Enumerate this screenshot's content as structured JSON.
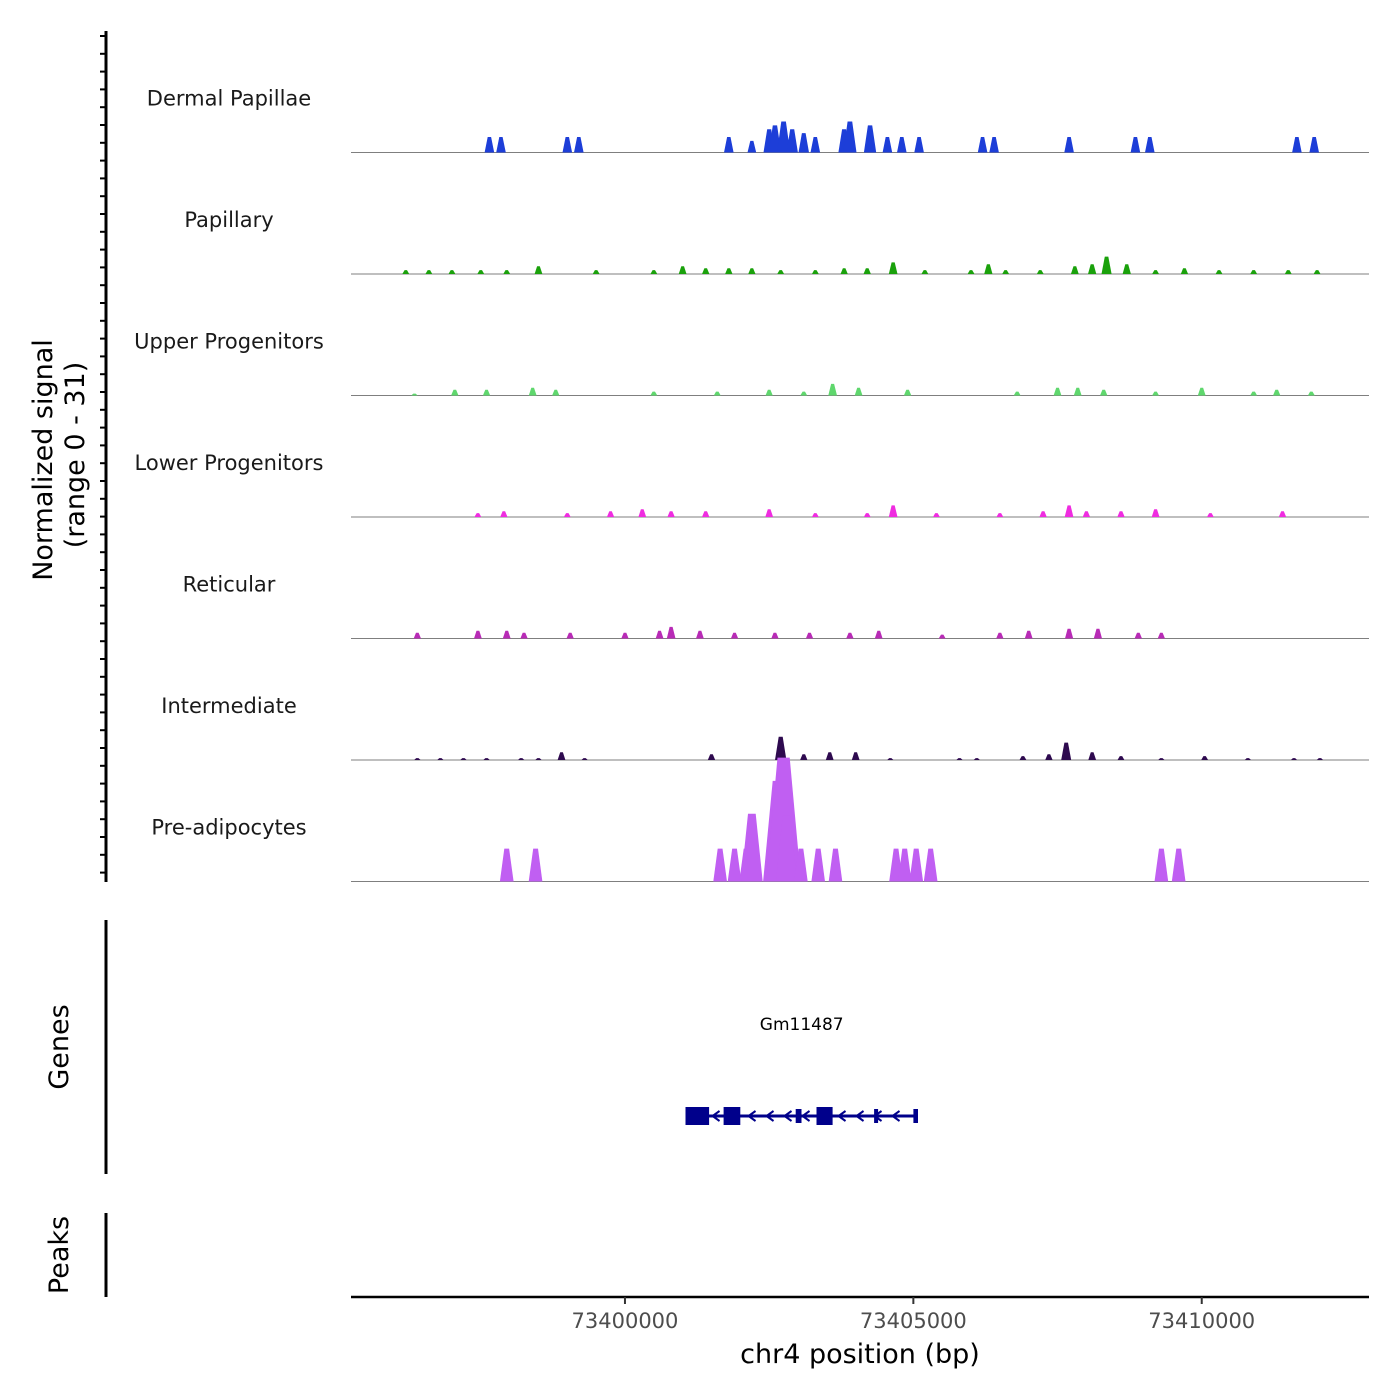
{
  "chart_data": {
    "type": "area",
    "title": "",
    "xlabel": "chr4 position (bp)",
    "ylabel": "Normalized signal",
    "ylabel_range": "(range 0 - 31)",
    "xlim": [
      73395250,
      73412900
    ],
    "ylim": [
      0,
      31
    ],
    "x_ticks": [
      73400000,
      73405000,
      73410000
    ],
    "x_tick_labels": [
      "73400000",
      "73405000",
      "73410000"
    ],
    "genes_panel_label": "Genes",
    "peaks_panel_label": "Peaks",
    "gene": {
      "name": "Gm11487",
      "strand": "-",
      "start": 73401050,
      "end": 73405080,
      "color": "#00008b",
      "exons": [
        {
          "start": 73401050,
          "end": 73401460,
          "height": "tall"
        },
        {
          "start": 73401710,
          "end": 73402000,
          "height": "tall"
        },
        {
          "start": 73402960,
          "end": 73403060,
          "height": "short"
        },
        {
          "start": 73403320,
          "end": 73403600,
          "height": "tall"
        },
        {
          "start": 73404320,
          "end": 73404390,
          "height": "short"
        },
        {
          "start": 73405000,
          "end": 73405080,
          "height": "short"
        }
      ]
    },
    "series": [
      {
        "name": "Dermal Papillae",
        "color": "#1d3ed8",
        "values": [
          [
            73397650,
            4
          ],
          [
            73397850,
            4
          ],
          [
            73399000,
            4
          ],
          [
            73399200,
            4
          ],
          [
            73401800,
            4
          ],
          [
            73402200,
            3
          ],
          [
            73402500,
            6
          ],
          [
            73402600,
            7
          ],
          [
            73402750,
            8
          ],
          [
            73402900,
            6
          ],
          [
            73403100,
            5
          ],
          [
            73403300,
            4
          ],
          [
            73403800,
            6
          ],
          [
            73403900,
            8
          ],
          [
            73404250,
            7
          ],
          [
            73404550,
            4
          ],
          [
            73404800,
            4
          ],
          [
            73405100,
            4
          ],
          [
            73406200,
            4
          ],
          [
            73406400,
            4
          ],
          [
            73407700,
            4
          ],
          [
            73408850,
            4
          ],
          [
            73409100,
            4
          ],
          [
            73411650,
            4
          ],
          [
            73411950,
            4
          ]
        ]
      },
      {
        "name": "Papillary",
        "color": "#1aa10b",
        "values": [
          [
            73396200,
            1
          ],
          [
            73396600,
            1
          ],
          [
            73397000,
            1
          ],
          [
            73397500,
            1
          ],
          [
            73397950,
            1
          ],
          [
            73398500,
            2
          ],
          [
            73399500,
            1
          ],
          [
            73400500,
            1
          ],
          [
            73401000,
            2
          ],
          [
            73401400,
            1.5
          ],
          [
            73401800,
            1.5
          ],
          [
            73402200,
            1.5
          ],
          [
            73402700,
            1
          ],
          [
            73403300,
            1
          ],
          [
            73403800,
            1.5
          ],
          [
            73404200,
            1.5
          ],
          [
            73404650,
            3
          ],
          [
            73405200,
            1
          ],
          [
            73406000,
            1
          ],
          [
            73406300,
            2.5
          ],
          [
            73406600,
            1
          ],
          [
            73407200,
            1
          ],
          [
            73407800,
            2
          ],
          [
            73408100,
            2.5
          ],
          [
            73408350,
            4.5
          ],
          [
            73408700,
            2.5
          ],
          [
            73409200,
            1
          ],
          [
            73409700,
            1.5
          ],
          [
            73410300,
            1
          ],
          [
            73410900,
            1
          ],
          [
            73411500,
            1
          ],
          [
            73412000,
            1
          ]
        ]
      },
      {
        "name": "Upper Progenitors",
        "color": "#5fd76d",
        "values": [
          [
            73396350,
            0.5
          ],
          [
            73397050,
            1.5
          ],
          [
            73397600,
            1.5
          ],
          [
            73398400,
            2
          ],
          [
            73398800,
            1.5
          ],
          [
            73400500,
            1
          ],
          [
            73401600,
            1
          ],
          [
            73402500,
            1.5
          ],
          [
            73403100,
            1
          ],
          [
            73403600,
            3
          ],
          [
            73404050,
            2
          ],
          [
            73404900,
            1.5
          ],
          [
            73406800,
            1
          ],
          [
            73407500,
            2
          ],
          [
            73407850,
            2
          ],
          [
            73408300,
            1.5
          ],
          [
            73409200,
            1
          ],
          [
            73410000,
            2
          ],
          [
            73410900,
            1
          ],
          [
            73411300,
            1.5
          ],
          [
            73411900,
            1
          ]
        ]
      },
      {
        "name": "Lower Progenitors",
        "color": "#ef2ce0",
        "values": [
          [
            73397450,
            1
          ],
          [
            73397900,
            1.5
          ],
          [
            73399000,
            1
          ],
          [
            73399750,
            1.5
          ],
          [
            73400300,
            2
          ],
          [
            73400800,
            1.5
          ],
          [
            73401400,
            1.5
          ],
          [
            73402500,
            2
          ],
          [
            73403300,
            1
          ],
          [
            73404200,
            1
          ],
          [
            73404650,
            3
          ],
          [
            73405400,
            1
          ],
          [
            73406500,
            1
          ],
          [
            73407250,
            1.5
          ],
          [
            73407700,
            3
          ],
          [
            73408000,
            1.5
          ],
          [
            73408600,
            1.5
          ],
          [
            73409200,
            2
          ],
          [
            73410150,
            1
          ],
          [
            73411400,
            1.5
          ]
        ]
      },
      {
        "name": "Reticular",
        "color": "#b82bb6",
        "values": [
          [
            73396400,
            1.5
          ],
          [
            73397450,
            2
          ],
          [
            73397950,
            2
          ],
          [
            73398250,
            1.5
          ],
          [
            73399050,
            1.5
          ],
          [
            73400000,
            1.5
          ],
          [
            73400600,
            2
          ],
          [
            73400800,
            3
          ],
          [
            73401300,
            2
          ],
          [
            73401900,
            1.5
          ],
          [
            73402600,
            1.5
          ],
          [
            73403200,
            1.5
          ],
          [
            73403900,
            1.5
          ],
          [
            73404400,
            2
          ],
          [
            73405500,
            1
          ],
          [
            73406500,
            1.5
          ],
          [
            73407000,
            2
          ],
          [
            73407700,
            2.5
          ],
          [
            73408200,
            2.5
          ],
          [
            73408900,
            1.5
          ],
          [
            73409300,
            1.5
          ]
        ]
      },
      {
        "name": "Intermediate",
        "color": "#2e0a4f",
        "values": [
          [
            73396400,
            0.5
          ],
          [
            73396800,
            0.5
          ],
          [
            73397200,
            0.5
          ],
          [
            73397600,
            0.5
          ],
          [
            73398200,
            0.5
          ],
          [
            73398500,
            0.5
          ],
          [
            73398900,
            2
          ],
          [
            73399300,
            0.5
          ],
          [
            73401500,
            1.5
          ],
          [
            73402700,
            6
          ],
          [
            73403100,
            1.5
          ],
          [
            73403550,
            2
          ],
          [
            73404000,
            2
          ],
          [
            73404600,
            0.5
          ],
          [
            73405800,
            0.5
          ],
          [
            73406100,
            0.5
          ],
          [
            73406900,
            1
          ],
          [
            73407350,
            1.5
          ],
          [
            73407650,
            4.5
          ],
          [
            73408100,
            2
          ],
          [
            73408600,
            1
          ],
          [
            73409300,
            0.5
          ],
          [
            73410050,
            1
          ],
          [
            73410800,
            0.5
          ],
          [
            73411600,
            0.5
          ],
          [
            73412050,
            0.5
          ]
        ]
      },
      {
        "name": "Pre-adipocytes",
        "color": "#c05ff2",
        "values": [
          [
            73397950,
            8.5
          ],
          [
            73398450,
            8.5
          ],
          [
            73401650,
            8.5
          ],
          [
            73401900,
            8.5
          ],
          [
            73402100,
            8.5
          ],
          [
            73402200,
            17.5
          ],
          [
            73402550,
            12
          ],
          [
            73402650,
            26
          ],
          [
            73402750,
            32
          ],
          [
            73402800,
            17
          ],
          [
            73403050,
            8.5
          ],
          [
            73403350,
            8.5
          ],
          [
            73403650,
            8.5
          ],
          [
            73404700,
            8.5
          ],
          [
            73404850,
            8.5
          ],
          [
            73405050,
            8.5
          ],
          [
            73405300,
            8.5
          ],
          [
            73409300,
            8.5
          ],
          [
            73409600,
            8.5
          ]
        ]
      }
    ]
  }
}
